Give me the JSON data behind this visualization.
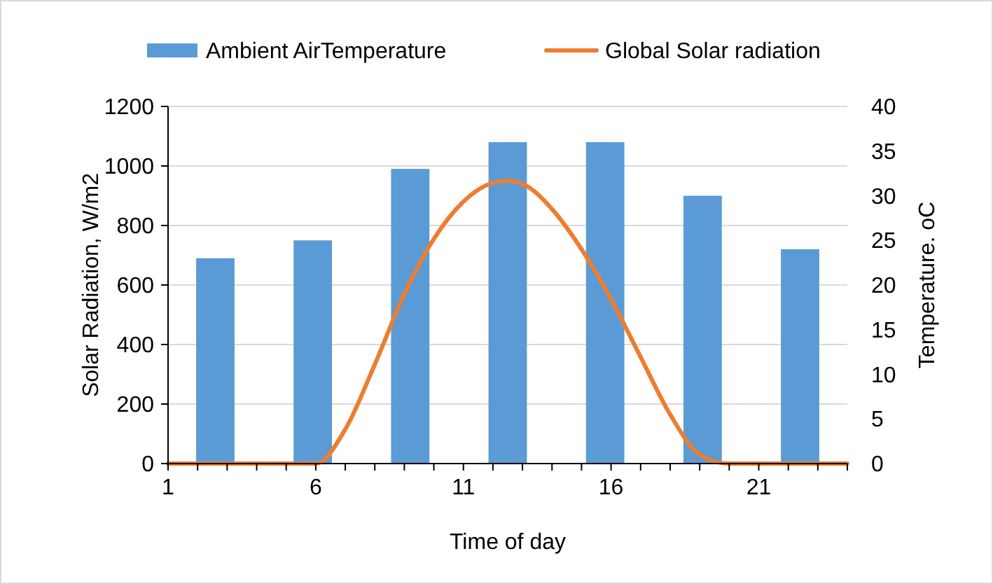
{
  "chart_data": {
    "type": "bar",
    "xlabel": "Time of day",
    "ylabel": "Solar Radiation, W/m2",
    "y2label": "Temperature. oC",
    "xlim": [
      1,
      24
    ],
    "xticks": [
      1,
      {
        "value": 2,
        "label": null
      },
      {
        "value": 3,
        "label": null
      },
      {
        "value": 4,
        "label": null
      },
      {
        "value": 5,
        "label": null
      },
      6,
      {
        "value": 7,
        "label": null
      },
      {
        "value": 8,
        "label": null
      },
      {
        "value": 9,
        "label": null
      },
      {
        "value": 10,
        "label": null
      },
      11,
      {
        "value": 12,
        "label": null
      },
      {
        "value": 13,
        "label": null
      },
      {
        "value": 14,
        "label": null
      },
      {
        "value": 15,
        "label": null
      },
      16,
      {
        "value": 17,
        "label": null
      },
      {
        "value": 18,
        "label": null
      },
      {
        "value": 19,
        "label": null
      },
      {
        "value": 20,
        "label": null
      },
      21,
      {
        "value": 22,
        "label": null
      },
      {
        "value": 23,
        "label": null
      },
      {
        "value": 24,
        "label": null
      }
    ],
    "ylim": [
      0,
      1200
    ],
    "yticks": [
      0,
      200,
      400,
      600,
      800,
      1000,
      1200
    ],
    "y2lim": [
      0,
      40
    ],
    "y2ticks": [
      0,
      5,
      10,
      15,
      20,
      25,
      30,
      35,
      40
    ],
    "grid": "y",
    "legend": "top",
    "series": [
      {
        "name": "Ambient AirTemperature",
        "axis": "y2",
        "color": "#5b9bd5",
        "x": [
          2.6,
          5.9,
          9.2,
          12.5,
          15.8,
          19.1,
          22.4
        ],
        "values": [
          23,
          25,
          33,
          36,
          36,
          30,
          24
        ]
      },
      {
        "name": "Global Solar radiation",
        "type": "line",
        "color": "#ed7d31",
        "marker": "none",
        "x": [
          1,
          2,
          3,
          4,
          5,
          6,
          7,
          8,
          9,
          10,
          11,
          12,
          12.5,
          13,
          14,
          15,
          16,
          17,
          18,
          19,
          20,
          21,
          22,
          23,
          24
        ],
        "values": [
          0,
          0,
          0,
          0,
          0,
          0,
          115,
          333,
          570,
          755,
          880,
          943,
          950,
          940,
          855,
          720,
          552,
          358,
          165,
          30,
          0,
          0,
          0,
          0,
          0
        ]
      }
    ]
  }
}
